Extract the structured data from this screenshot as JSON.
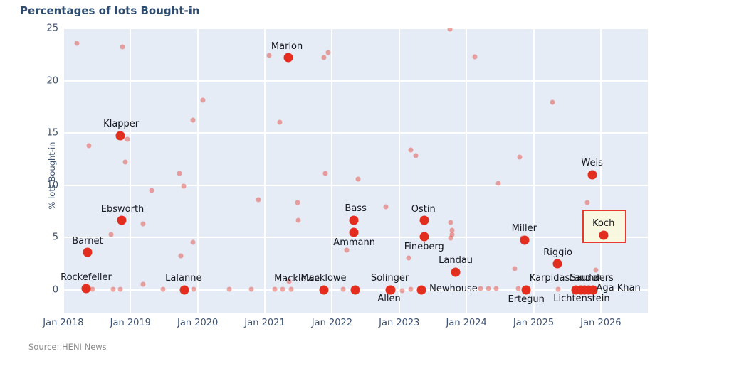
{
  "title": "Percentages of lots Bought-in",
  "source": "Source: HENI News",
  "colors": {
    "title_text": "#2e4c70",
    "plot_background": "#e5ecf6",
    "gridline": "#ffffff",
    "highlight_dot": "#e32d1f",
    "background_dot": "rgba(227,45,31,0.42)",
    "point_label_text": "#16191f",
    "tick_text": "#3d5270",
    "annotation_box_fill": "#faf7de",
    "annotation_box_border": "#e8392e",
    "source_text": "#8b8b8b"
  },
  "chart_data": {
    "type": "scatter",
    "title": "Percentages of lots Bought-in",
    "xlabel": "",
    "ylabel": "% lots Bought-in",
    "xlim": [
      2017.99,
      2026.7
    ],
    "ylim": [
      -2.21,
      25.0
    ],
    "grid": true,
    "legend": "none",
    "x_ticks": [
      {
        "x": 2018,
        "label": "Jan 2018"
      },
      {
        "x": 2019,
        "label": "Jan 2019"
      },
      {
        "x": 2020,
        "label": "Jan 2020"
      },
      {
        "x": 2021,
        "label": "Jan 2021"
      },
      {
        "x": 2022,
        "label": "Jan 2022"
      },
      {
        "x": 2023,
        "label": "Jan 2023"
      },
      {
        "x": 2024,
        "label": "Jan 2024"
      },
      {
        "x": 2025,
        "label": "Jan 2025"
      },
      {
        "x": 2026,
        "label": "Jan 2026"
      }
    ],
    "y_ticks": [
      0,
      5,
      10,
      15,
      20,
      25
    ],
    "series": [
      {
        "name": "labeled_collections",
        "marker": "large-red",
        "points": [
          {
            "name": "Rockefeller",
            "x": 2018.34,
            "y": 0.1,
            "label_offset": [
              0,
              -15
            ]
          },
          {
            "name": "Barnet",
            "x": 2018.36,
            "y": 3.6,
            "label_offset": [
              0,
              -15
            ]
          },
          {
            "name": "Klapper",
            "x": 2018.85,
            "y": 14.7,
            "label_offset": [
              1,
              -16
            ]
          },
          {
            "name": "Ebsworth",
            "x": 2018.87,
            "y": 6.6,
            "label_offset": [
              1,
              -15
            ]
          },
          {
            "name": "Lalanne",
            "x": 2019.8,
            "y": 0.0,
            "label_offset": [
              -1,
              -16
            ]
          },
          {
            "name": "Marion",
            "x": 2021.35,
            "y": 22.2,
            "label_offset": [
              -2,
              -15
            ]
          },
          {
            "name": "Macklowe",
            "x": 2021.88,
            "y": 0.0,
            "label_offset": [
              -38,
              -15
            ]
          },
          {
            "name": "Macklowe",
            "x": 2022.34,
            "y": 0.0,
            "label_offset": [
              -44,
              -16
            ]
          },
          {
            "name": "Bass",
            "x": 2022.32,
            "y": 6.6,
            "label_offset": [
              3,
              -16
            ]
          },
          {
            "name": "Ammann",
            "x": 2022.32,
            "y": 5.5,
            "label_offset": [
              1,
              15
            ]
          },
          {
            "name": "Solinger",
            "x": 2022.86,
            "y": 0.0,
            "label_offset": [
              0,
              -16
            ]
          },
          {
            "name": "Allen",
            "x": 2022.87,
            "y": 0.0,
            "label_offset": [
              -2,
              13
            ]
          },
          {
            "name": "Newhouse",
            "x": 2023.33,
            "y": 0.0,
            "label_offset": [
              45,
              -1
            ]
          },
          {
            "name": "Ostin",
            "x": 2023.37,
            "y": 6.6,
            "label_offset": [
              -1,
              -15
            ]
          },
          {
            "name": "Fineberg",
            "x": 2023.37,
            "y": 5.1,
            "label_offset": [
              0,
              15
            ]
          },
          {
            "name": "Landau",
            "x": 2023.84,
            "y": 1.7,
            "label_offset": [
              0,
              -16
            ]
          },
          {
            "name": "Miller",
            "x": 2024.87,
            "y": 4.7,
            "label_offset": [
              -1,
              -16
            ]
          },
          {
            "name": "Ertegun",
            "x": 2024.89,
            "y": 0.0,
            "label_offset": [
              0,
              14
            ]
          },
          {
            "name": "Riggio",
            "x": 2025.35,
            "y": 2.5,
            "label_offset": [
              1,
              -15
            ]
          },
          {
            "name": "Karpidas",
            "x": 2025.63,
            "y": 0.0,
            "label_offset": [
              -37,
              -16
            ]
          },
          {
            "name": "Lauder",
            "x": 2025.7,
            "y": 0.0,
            "label_offset": [
              6,
              -16
            ]
          },
          {
            "name": "Saunders",
            "x": 2025.76,
            "y": 0.0,
            "label_offset": [
              10,
              -16
            ]
          },
          {
            "name": "Lichtenstein",
            "x": 2025.82,
            "y": 0.0,
            "label_offset": [
              -10,
              13
            ]
          },
          {
            "name": "Aga Khan",
            "x": 2025.88,
            "y": 0.0,
            "label_offset": [
              36,
              -2
            ]
          },
          {
            "name": "Weis",
            "x": 2025.87,
            "y": 11.0,
            "label_offset": [
              0,
              -16
            ]
          },
          {
            "name": "Koch",
            "x": 2026.04,
            "y": 5.2,
            "label_offset": [
              0,
              -16
            ]
          }
        ]
      },
      {
        "name": "background_lots",
        "marker": "small-pink",
        "points": [
          [
            2018.2,
            23.6
          ],
          [
            2018.88,
            23.2
          ],
          [
            2021.06,
            22.4
          ],
          [
            2021.88,
            22.2
          ],
          [
            2021.94,
            22.7
          ],
          [
            2023.75,
            24.9
          ],
          [
            2024.13,
            22.3
          ],
          [
            2020.08,
            18.1
          ],
          [
            2025.28,
            17.9
          ],
          [
            2019.93,
            16.2
          ],
          [
            2021.22,
            16.0
          ],
          [
            2018.95,
            14.4
          ],
          [
            2018.38,
            13.8
          ],
          [
            2018.92,
            12.2
          ],
          [
            2023.17,
            13.4
          ],
          [
            2023.25,
            12.8
          ],
          [
            2024.79,
            12.7
          ],
          [
            2019.73,
            11.1
          ],
          [
            2021.9,
            11.1
          ],
          [
            2022.39,
            10.6
          ],
          [
            2024.47,
            10.2
          ],
          [
            2019.31,
            9.5
          ],
          [
            2019.79,
            9.9
          ],
          [
            2020.9,
            8.6
          ],
          [
            2021.49,
            8.3
          ],
          [
            2021.5,
            6.6
          ],
          [
            2019.19,
            6.3
          ],
          [
            2018.71,
            5.3
          ],
          [
            2025.8,
            8.3
          ],
          [
            2022.8,
            7.9
          ],
          [
            2023.76,
            6.4
          ],
          [
            2023.79,
            5.7
          ],
          [
            2023.79,
            5.3
          ],
          [
            2023.77,
            4.9
          ],
          [
            2019.93,
            4.5
          ],
          [
            2022.22,
            3.8
          ],
          [
            2019.75,
            3.2
          ],
          [
            2023.14,
            3.0
          ],
          [
            2024.72,
            2.0
          ],
          [
            2025.93,
            1.9
          ],
          [
            2019.19,
            0.5
          ],
          [
            2021.36,
            0.8
          ],
          [
            2024.83,
            4.9
          ],
          [
            2018.43,
            0.05
          ],
          [
            2018.74,
            0.05
          ],
          [
            2018.85,
            0.05
          ],
          [
            2019.48,
            0.05
          ],
          [
            2019.94,
            0.05
          ],
          [
            2020.47,
            0.05
          ],
          [
            2020.8,
            0.05
          ],
          [
            2021.15,
            0.05
          ],
          [
            2021.26,
            0.05
          ],
          [
            2021.39,
            0.05
          ],
          [
            2022.17,
            0.05
          ],
          [
            2023.04,
            -0.1
          ],
          [
            2023.17,
            0.05
          ],
          [
            2024.21,
            0.1
          ],
          [
            2024.33,
            0.1
          ],
          [
            2024.44,
            0.1
          ],
          [
            2024.77,
            0.1
          ],
          [
            2025.37,
            0.05
          ]
        ]
      }
    ],
    "annotation_box": {
      "name": "Koch",
      "x0": 2025.72,
      "x1": 2026.38,
      "y0": 4.45,
      "y1": 7.65
    }
  }
}
